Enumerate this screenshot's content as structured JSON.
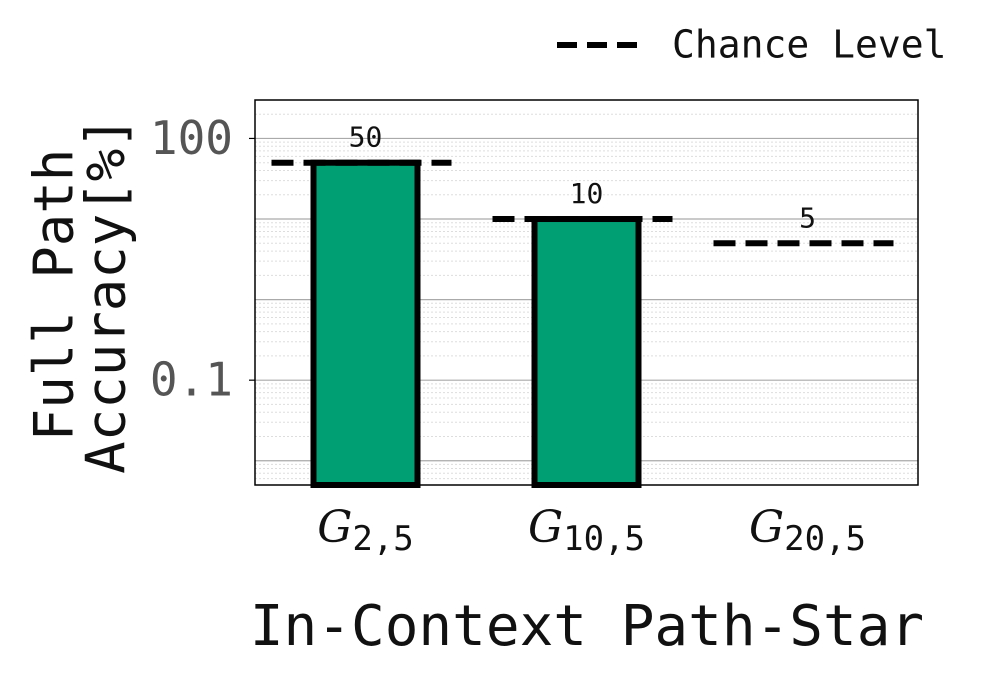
{
  "chart_data": {
    "type": "bar",
    "categories": [
      {
        "symbol": "G",
        "subscript": "2,5"
      },
      {
        "symbol": "G",
        "subscript": "10,5"
      },
      {
        "symbol": "G",
        "subscript": "20,5"
      }
    ],
    "series": [
      {
        "name": "Full Path Accuracy",
        "color": "#009e73",
        "values": [
          50,
          10,
          null
        ]
      },
      {
        "name": "Chance Level",
        "color": "#000000",
        "values": [
          50,
          10,
          5
        ]
      }
    ],
    "ylabel": [
      "Full Path",
      "Accuracy[%]"
    ],
    "xlabel": "In-Context Path-Star",
    "ylim": [
      0.005,
      300
    ],
    "yticks": [
      0.1,
      100
    ],
    "log_scale": true,
    "grid": true,
    "legend": "top-right"
  }
}
